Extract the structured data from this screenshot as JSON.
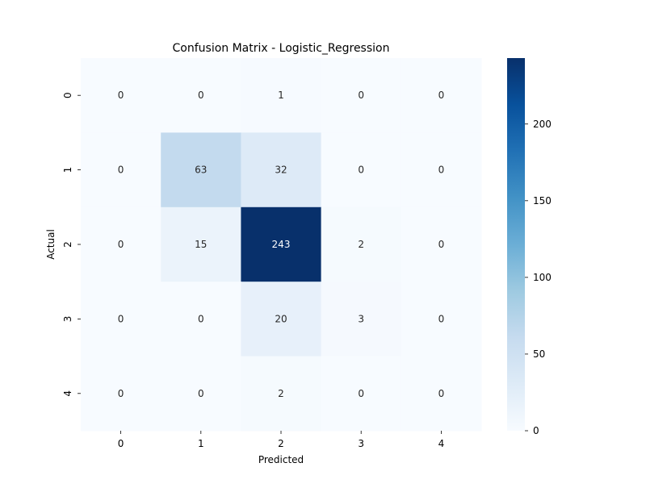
{
  "chart_data": {
    "type": "heatmap",
    "title": "Confusion Matrix - Logistic_Regression",
    "xlabel": "Predicted",
    "ylabel": "Actual",
    "x_categories": [
      "0",
      "1",
      "2",
      "3",
      "4"
    ],
    "y_categories": [
      "0",
      "1",
      "2",
      "3",
      "4"
    ],
    "values": [
      [
        0,
        0,
        1,
        0,
        0
      ],
      [
        0,
        63,
        32,
        0,
        0
      ],
      [
        0,
        15,
        243,
        2,
        0
      ],
      [
        0,
        0,
        20,
        3,
        0
      ],
      [
        0,
        0,
        2,
        0,
        0
      ]
    ],
    "colormap": "Blues",
    "colorbar": {
      "min": 0,
      "max": 243,
      "ticks": [
        0,
        50,
        100,
        150,
        200
      ],
      "tick_labels": [
        "0",
        "50",
        "100",
        "150",
        "200"
      ]
    },
    "annotate_cells": true,
    "grid": false
  }
}
